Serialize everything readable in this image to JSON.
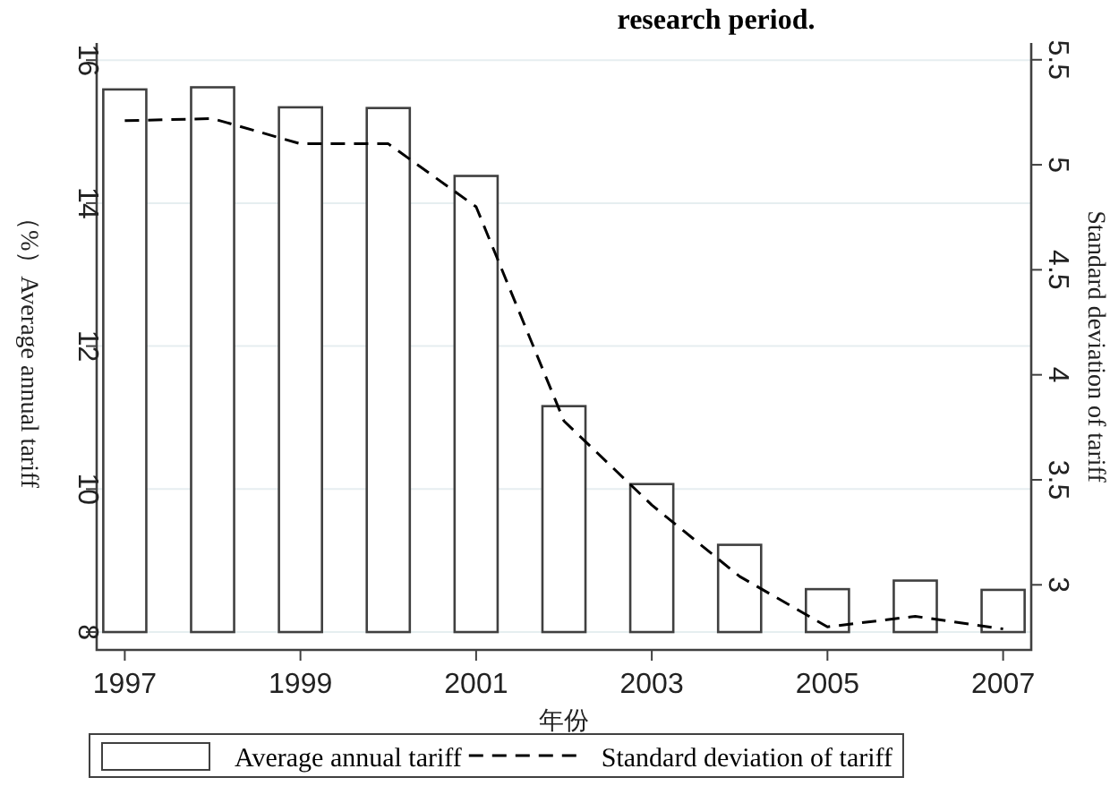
{
  "chart_data": {
    "type": "bar",
    "x": [
      1997,
      1998,
      1999,
      2000,
      2001,
      2002,
      2003,
      2004,
      2005,
      2006,
      2007
    ],
    "series": [
      {
        "name": "Average annual tariff",
        "color": "#ffffff",
        "base": [
          8,
          8,
          8,
          8,
          8,
          8,
          8,
          8,
          8,
          8,
          8
        ],
        "values": [
          7.59,
          7.62,
          7.34,
          7.33,
          6.38,
          3.16,
          2.07,
          1.22,
          0.6,
          0.72,
          0.59
        ]
      },
      {
        "name": "Standard deviation of tariff",
        "type": "line",
        "axis": "y2",
        "color": "#000000",
        "line_style": "dashed",
        "values": [
          5.21,
          5.22,
          5.1,
          5.1,
          4.8,
          3.78,
          3.38,
          3.04,
          2.8,
          2.85,
          2.79
        ]
      }
    ],
    "xlim": [
      1996.68,
      2007.32
    ],
    "xticks": [
      1997,
      1999,
      2001,
      2003,
      2005,
      2007
    ],
    "ylim": [
      7.75,
      16.24
    ],
    "yticks": [
      8,
      10,
      12,
      14,
      16
    ],
    "y2lim": [
      2.69,
      5.58
    ],
    "y2ticks": [
      3,
      3.5,
      4,
      4.5,
      5,
      5.5
    ],
    "xlabel": "年份",
    "ylabel": "（%）Average annual tariff",
    "y2label": "Standard deviation of tariff",
    "annotations": [
      "research period."
    ],
    "grid": "y",
    "legend": "bottom"
  }
}
